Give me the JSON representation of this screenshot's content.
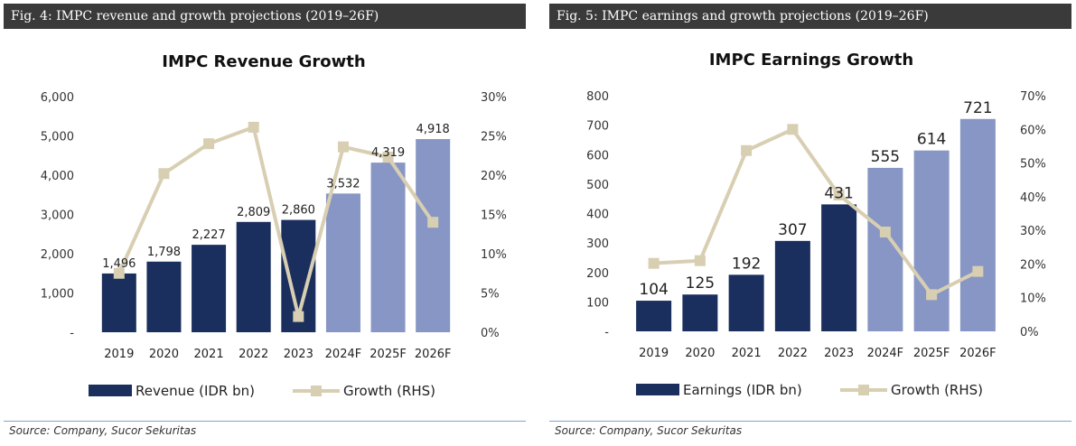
{
  "colors": {
    "header_bg": "#3a3a3a",
    "bar_actual": "#1b2f5e",
    "bar_forecast": "#8796c4",
    "growth_line": "#d8ceb2",
    "source_rule": "#7ba4cf"
  },
  "figures": [
    {
      "header": "Fig. 4: IMPC revenue and growth projections (2019–26F)",
      "source": "Source: Company, Sucor Sekuritas"
    },
    {
      "header": "Fig. 5: IMPC earnings and growth projections (2019–26F)",
      "source": "Source: Company, Sucor Sekuritas"
    }
  ],
  "chart_data": [
    {
      "type": "bar",
      "title": "IMPC Revenue Growth",
      "categories": [
        "2019",
        "2020",
        "2021",
        "2022",
        "2023",
        "2024F",
        "2025F",
        "2026F"
      ],
      "forecast_from_index": 5,
      "series": [
        {
          "name": "Revenue (IDR bn)",
          "kind": "bar",
          "axis": "left",
          "values": [
            1496,
            1798,
            2227,
            2809,
            2860,
            3532,
            4319,
            4918
          ],
          "labels": [
            "1,496",
            "1,798",
            "2,227",
            "2,809",
            "2,860",
            "3,532",
            "4,319",
            "4,918"
          ]
        },
        {
          "name": "Growth (RHS)",
          "kind": "line",
          "axis": "right",
          "values": [
            7.5,
            20.2,
            24.0,
            26.1,
            2.0,
            23.6,
            22.3,
            14.0
          ]
        }
      ],
      "ylim_left": [
        0,
        6000
      ],
      "ylim_right": [
        0,
        30
      ],
      "yticks_left": [
        "-",
        "1,000",
        "2,000",
        "3,000",
        "4,000",
        "5,000",
        "6,000"
      ],
      "yticks_right": [
        "0%",
        "5%",
        "10%",
        "15%",
        "20%",
        "25%",
        "30%"
      ],
      "grid": false,
      "legend": "bottom"
    },
    {
      "type": "bar",
      "title": "IMPC Earnings Growth",
      "categories": [
        "2019",
        "2020",
        "2021",
        "2022",
        "2023",
        "2024F",
        "2025F",
        "2026F"
      ],
      "forecast_from_index": 5,
      "series": [
        {
          "name": "Earnings (IDR bn)",
          "kind": "bar",
          "axis": "left",
          "values": [
            104,
            125,
            192,
            307,
            431,
            555,
            614,
            721
          ],
          "labels": [
            "104",
            "125",
            "192",
            "307",
            "431",
            "555",
            "614",
            "721"
          ]
        },
        {
          "name": "Growth (RHS)",
          "kind": "line",
          "axis": "right",
          "values": [
            20.2,
            21.0,
            53.7,
            60.0,
            40.5,
            29.5,
            10.9,
            17.8
          ]
        }
      ],
      "ylim_left": [
        0,
        800
      ],
      "ylim_right": [
        0,
        70
      ],
      "yticks_left": [
        "-",
        "100",
        "200",
        "300",
        "400",
        "500",
        "600",
        "700",
        "800"
      ],
      "yticks_right": [
        "0%",
        "10%",
        "20%",
        "30%",
        "40%",
        "50%",
        "60%",
        "70%"
      ],
      "grid": false,
      "legend": "bottom"
    }
  ]
}
